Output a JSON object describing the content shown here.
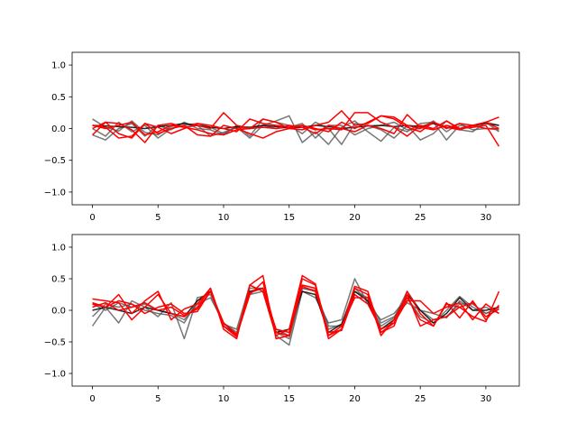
{
  "chart_data": [
    {
      "type": "line",
      "xlim": [
        -1.55,
        32.55
      ],
      "ylim": [
        -1.2,
        1.2
      ],
      "xticks": [
        0,
        5,
        10,
        15,
        20,
        25,
        30
      ],
      "yticks": [
        -1.0,
        -0.5,
        0.0,
        0.5,
        1.0
      ],
      "xtick_labels": [
        "0",
        "5",
        "10",
        "15",
        "20",
        "25",
        "30"
      ],
      "ytick_labels": [
        "−1.0",
        "−0.5",
        "0.0",
        "0.5",
        "1.0"
      ],
      "grid": false,
      "series": [
        {
          "color": "#555555",
          "opacity": 0.8,
          "values": [
            0.15,
            0.02,
            -0.04,
            0.12,
            -0.06,
            -0.1,
            0.03,
            0.08,
            0.05,
            -0.12,
            -0.06,
            0.02,
            0.0,
            0.05,
            0.12,
            0.2,
            -0.22,
            -0.05,
            -0.25,
            0.02,
            0.12,
            -0.05,
            -0.2,
            0.02,
            -0.05,
            0.08,
            0.1,
            -0.18,
            0.05,
            0.02,
            0.1,
            -0.05
          ]
        },
        {
          "color": "#555555",
          "opacity": 0.8,
          "values": [
            -0.1,
            -0.18,
            0.0,
            0.08,
            -0.12,
            0.05,
            -0.02,
            0.1,
            0.0,
            -0.02,
            -0.1,
            0.05,
            -0.12,
            0.15,
            0.1,
            0.05,
            -0.08,
            0.1,
            0.0,
            -0.25,
            0.08,
            0.05,
            -0.02,
            -0.15,
            0.05,
            -0.18,
            -0.08,
            0.12,
            -0.02,
            -0.05,
            0.1,
            0.05
          ]
        },
        {
          "color": "#555555",
          "opacity": 0.8,
          "values": [
            0.0,
            -0.12,
            0.1,
            -0.05,
            0.05,
            -0.15,
            0.0,
            0.05,
            0.08,
            0.02,
            -0.08,
            0.02,
            -0.15,
            0.05,
            0.0,
            0.02,
            0.08,
            -0.15,
            0.05,
            0.05,
            -0.1,
            0.0,
            0.05,
            0.1,
            -0.02,
            0.0,
            0.12,
            -0.05,
            0.08,
            -0.02,
            0.0,
            -0.02
          ]
        },
        {
          "color": "#111111",
          "opacity": 0.9,
          "values": [
            0.05,
            0.04,
            0.03,
            0.02,
            0.0,
            0.03,
            0.05,
            0.08,
            0.05,
            0.02,
            0.0,
            0.03,
            0.02,
            0.05,
            0.03,
            0.01,
            0.02,
            0.05,
            0.03,
            0.0,
            0.02,
            0.04,
            0.05,
            0.03,
            0.05,
            0.03,
            0.08,
            0.02,
            0.0,
            0.05,
            0.08,
            0.05
          ]
        },
        {
          "color": "#ff0000",
          "opacity": 1.0,
          "values": [
            -0.1,
            0.1,
            0.08,
            -0.02,
            -0.22,
            0.05,
            0.08,
            0.02,
            0.05,
            0.0,
            0.25,
            0.05,
            0.0,
            0.15,
            0.1,
            0.0,
            -0.02,
            0.05,
            0.1,
            0.28,
            0.05,
            0.08,
            0.2,
            0.15,
            0.02,
            -0.05,
            0.1,
            0.02,
            -0.02,
            0.05,
            0.1,
            0.18
          ]
        },
        {
          "color": "#ff0000",
          "opacity": 1.0,
          "values": [
            0.05,
            0.02,
            -0.15,
            -0.12,
            0.08,
            -0.08,
            0.0,
            0.05,
            -0.1,
            -0.12,
            0.05,
            0.0,
            -0.08,
            -0.15,
            -0.05,
            0.0,
            0.05,
            -0.02,
            0.0,
            -0.02,
            0.25,
            0.25,
            0.1,
            0.02,
            -0.12,
            0.05,
            0.0,
            0.12,
            0.0,
            0.02,
            0.05,
            -0.28
          ]
        },
        {
          "color": "#ff0000",
          "opacity": 1.0,
          "values": [
            0.0,
            0.1,
            -0.08,
            -0.15,
            0.08,
            0.02,
            -0.08,
            0.0,
            0.08,
            0.05,
            0.0,
            -0.05,
            0.15,
            0.08,
            0.05,
            0.02,
            0.05,
            0.0,
            -0.05,
            0.1,
            0.0,
            0.1,
            0.2,
            0.18,
            0.05,
            0.0,
            0.1,
            0.0,
            0.08,
            0.05,
            0.0,
            0.0
          ]
        },
        {
          "color": "#ff0000",
          "opacity": 1.0,
          "values": [
            0.05,
            0.0,
            0.05,
            0.1,
            -0.1,
            -0.05,
            0.05,
            0.02,
            -0.02,
            -0.08,
            -0.1,
            -0.02,
            0.0,
            0.02,
            0.0,
            0.05,
            0.02,
            -0.08,
            0.05,
            0.0,
            -0.05,
            0.05,
            0.0,
            -0.08,
            0.22,
            0.02,
            -0.02,
            0.05,
            0.0,
            0.05,
            0.1,
            0.0
          ]
        }
      ]
    },
    {
      "type": "line",
      "xlim": [
        -1.55,
        32.55
      ],
      "ylim": [
        -1.2,
        1.2
      ],
      "xticks": [
        0,
        5,
        10,
        15,
        20,
        25,
        30
      ],
      "yticks": [
        -1.0,
        -0.5,
        0.0,
        0.5,
        1.0
      ],
      "xtick_labels": [
        "0",
        "5",
        "10",
        "15",
        "20",
        "25",
        "30"
      ],
      "ytick_labels": [
        "−1.0",
        "−0.5",
        "0.0",
        "0.5",
        "1.0"
      ],
      "grid": false,
      "series": [
        {
          "color": "#555555",
          "opacity": 0.8,
          "values": [
            -0.25,
            0.05,
            -0.2,
            0.15,
            0.05,
            -0.1,
            0.12,
            -0.45,
            0.2,
            0.25,
            -0.22,
            -0.3,
            0.4,
            0.3,
            -0.4,
            -0.55,
            0.3,
            0.2,
            -0.2,
            -0.15,
            0.5,
            0.1,
            -0.15,
            -0.05,
            0.2,
            -0.1,
            -0.2,
            0.0,
            0.22,
            0.05,
            -0.05,
            0.05
          ]
        },
        {
          "color": "#555555",
          "opacity": 0.8,
          "values": [
            -0.1,
            0.1,
            0.05,
            0.1,
            0.0,
            -0.05,
            -0.08,
            -0.2,
            0.15,
            0.3,
            -0.25,
            -0.38,
            0.35,
            0.35,
            -0.35,
            -0.45,
            0.35,
            0.3,
            -0.3,
            -0.22,
            0.35,
            0.15,
            -0.25,
            -0.12,
            0.3,
            0.0,
            -0.15,
            -0.1,
            0.1,
            0.1,
            -0.05,
            0.02
          ]
        },
        {
          "color": "#555555",
          "opacity": 0.8,
          "values": [
            0.1,
            0.0,
            0.12,
            0.05,
            0.1,
            0.0,
            -0.05,
            -0.15,
            0.1,
            0.2,
            -0.2,
            -0.35,
            0.25,
            0.3,
            -0.3,
            -0.4,
            0.35,
            0.32,
            -0.25,
            -0.25,
            0.3,
            0.2,
            -0.2,
            -0.1,
            0.12,
            0.0,
            -0.05,
            -0.12,
            0.15,
            0.0,
            0.05,
            -0.05
          ]
        },
        {
          "color": "#111111",
          "opacity": 0.9,
          "values": [
            0.0,
            0.05,
            0.0,
            -0.05,
            0.05,
            0.0,
            -0.05,
            -0.1,
            0.15,
            0.3,
            -0.2,
            -0.4,
            0.3,
            0.35,
            -0.35,
            -0.3,
            0.3,
            0.25,
            -0.35,
            -0.22,
            0.3,
            0.15,
            -0.3,
            -0.15,
            0.25,
            0.0,
            -0.2,
            -0.05,
            0.2,
            0.0,
            0.0,
            0.05
          ]
        },
        {
          "color": "#ff0000",
          "opacity": 1.0,
          "values": [
            0.12,
            0.05,
            0.25,
            -0.05,
            0.15,
            0.3,
            -0.15,
            0.02,
            0.1,
            0.35,
            -0.3,
            -0.45,
            0.4,
            0.55,
            -0.45,
            -0.4,
            0.5,
            0.4,
            -0.45,
            -0.3,
            0.35,
            0.25,
            -0.4,
            -0.15,
            0.25,
            -0.25,
            -0.15,
            -0.1,
            0.05,
            -0.1,
            -0.18,
            0.3
          ]
        },
        {
          "color": "#ff0000",
          "opacity": 1.0,
          "values": [
            0.05,
            0.12,
            0.0,
            0.05,
            0.12,
            0.0,
            0.05,
            -0.08,
            0.02,
            0.3,
            -0.25,
            -0.4,
            0.25,
            0.45,
            -0.35,
            -0.4,
            0.4,
            0.35,
            -0.4,
            -0.25,
            0.2,
            0.2,
            -0.35,
            -0.2,
            0.2,
            -0.15,
            -0.25,
            0.1,
            0.05,
            0.12,
            -0.1,
            0.02
          ]
        },
        {
          "color": "#ff0000",
          "opacity": 1.0,
          "values": [
            0.18,
            0.15,
            0.12,
            -0.15,
            0.05,
            0.25,
            -0.05,
            -0.1,
            0.05,
            0.35,
            -0.25,
            -0.42,
            0.4,
            0.3,
            -0.4,
            -0.3,
            0.55,
            0.42,
            -0.4,
            -0.3,
            0.38,
            0.3,
            -0.35,
            -0.25,
            0.3,
            -0.05,
            -0.25,
            0.12,
            -0.12,
            0.15,
            -0.15,
            0.08
          ]
        },
        {
          "color": "#ff0000",
          "opacity": 1.0,
          "values": [
            0.1,
            0.05,
            0.15,
            0.1,
            -0.05,
            0.05,
            0.1,
            -0.05,
            -0.02,
            0.3,
            -0.2,
            -0.38,
            0.28,
            0.35,
            -0.3,
            -0.35,
            0.38,
            0.3,
            -0.35,
            -0.32,
            0.25,
            0.1,
            -0.3,
            -0.2,
            0.15,
            0.15,
            -0.05,
            0.05,
            0.12,
            -0.15,
            0.1,
            -0.05
          ]
        }
      ]
    }
  ]
}
